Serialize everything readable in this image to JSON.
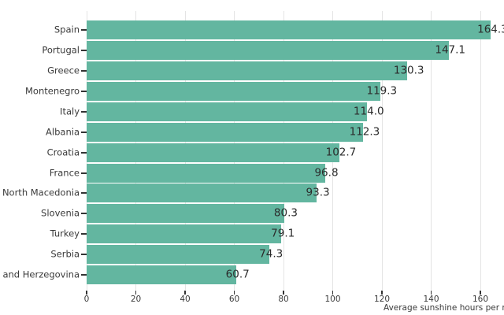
{
  "chart_data": {
    "type": "bar",
    "orientation": "horizontal",
    "title": "",
    "xlabel": "Average sunshine hours per month",
    "ylabel": "",
    "categories": [
      "Spain",
      "Portugal",
      "Greece",
      "Montenegro",
      "Italy",
      "Albania",
      "Croatia",
      "France",
      "North Macedonia",
      "Slovenia",
      "Turkey",
      "Serbia",
      "Bosnia and Herzegovina"
    ],
    "values": [
      164.3,
      147.1,
      130.3,
      119.3,
      114.0,
      112.3,
      102.7,
      96.8,
      93.3,
      80.3,
      79.1,
      74.3,
      60.7
    ],
    "value_labels": [
      "164.3",
      "147.1",
      "130.3",
      "119.3",
      "114.0",
      "112.3",
      "102.7",
      "96.8",
      "93.3",
      "80.3",
      "79.1",
      "74.3",
      "60.7"
    ],
    "x_ticks": [
      0,
      20,
      40,
      60,
      80,
      100,
      120,
      140,
      160
    ],
    "x_tick_labels": [
      "0",
      "20",
      "40",
      "60",
      "80",
      "100",
      "120",
      "140",
      "160"
    ],
    "xlim": [
      0,
      169.6
    ],
    "grid": "vertical-major-only",
    "legend": "none",
    "notes": "left category label and right end of x-axis title are clipped by the window edges",
    "colors": {
      "bar": "#63b6a0",
      "grid": "#e4e4e4",
      "tick_mark": "#333333",
      "axis_text": "#3a3a3a",
      "value_text": "#2b2b2b",
      "background": "#ffffff"
    }
  }
}
